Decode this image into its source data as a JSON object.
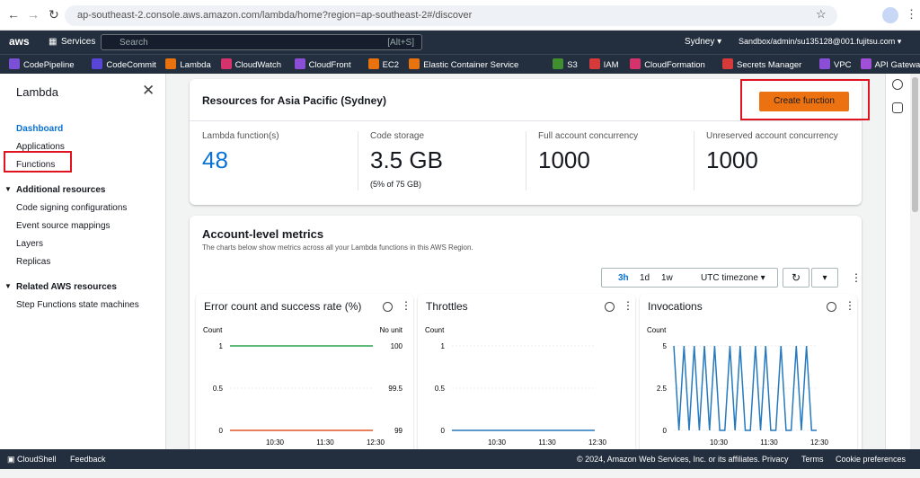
{
  "browser": {
    "url": "ap-southeast-2.console.aws.amazon.com/lambda/home?region=ap-southeast-2#/discover"
  },
  "aws_nav": {
    "services": "Services",
    "search": "Search",
    "shortcut": "[Alt+S]",
    "region": "Sydney",
    "account": "Sandbox/admin/su135128@001.fujitsu.com"
  },
  "favorites": [
    {
      "label": "CodePipeline",
      "color": "#7b4fd6"
    },
    {
      "label": "CodeCommit",
      "color": "#5a46d6"
    },
    {
      "label": "Lambda",
      "color": "#e8730e"
    },
    {
      "label": "CloudWatch",
      "color": "#d6336c"
    },
    {
      "label": "CloudFront",
      "color": "#8a4fd6"
    },
    {
      "label": "EC2",
      "color": "#e8730e"
    },
    {
      "label": "Elastic Container Service",
      "color": "#e8730e"
    },
    {
      "label": "S3",
      "color": "#3f8f2f"
    },
    {
      "label": "IAM",
      "color": "#d63a3a"
    },
    {
      "label": "CloudFormation",
      "color": "#d6336c"
    },
    {
      "label": "Secrets Manager",
      "color": "#d63a3a"
    },
    {
      "label": "VPC",
      "color": "#8a4fd6"
    },
    {
      "label": "API Gateway",
      "color": "#a04fd6"
    }
  ],
  "sidebar": {
    "title": "Lambda",
    "items": [
      "Dashboard",
      "Applications",
      "Functions"
    ],
    "sections": [
      {
        "title": "Additional resources",
        "items": [
          "Code signing configurations",
          "Event source mappings",
          "Layers",
          "Replicas"
        ]
      },
      {
        "title": "Related AWS resources",
        "items": [
          "Step Functions state machines"
        ]
      }
    ]
  },
  "resources": {
    "title": "Resources for Asia Pacific (Sydney)",
    "button": "Create function",
    "stats": [
      {
        "label": "Lambda function(s)",
        "value": "48"
      },
      {
        "label": "Code storage",
        "value": "3.5 GB",
        "note": "(5% of 75 GB)"
      },
      {
        "label": "Full account concurrency",
        "value": "1000"
      },
      {
        "label": "Unreserved account concurrency",
        "value": "1000"
      }
    ]
  },
  "metrics": {
    "title": "Account-level metrics",
    "description": "The charts below show metrics across all your Lambda functions in this AWS Region.",
    "ranges": [
      "3h",
      "1d",
      "1w"
    ],
    "timezone": "UTC timezone",
    "charts": [
      {
        "type": "line",
        "title": "Error count and success rate (%)",
        "ylabel": "Count",
        "y2label": "No unit",
        "ylim": [
          0,
          1
        ],
        "yticks": [
          1,
          0.5,
          0
        ],
        "y2lim": [
          99,
          100
        ],
        "y2ticks": [
          100,
          99.5,
          99
        ],
        "xticks": [
          "10:30",
          "11:30",
          "12:30"
        ],
        "series": [
          {
            "color": "#2ea44f",
            "axis": "y2",
            "values": [
              100,
              100
            ]
          },
          {
            "color": "#e0552a",
            "values": [
              0,
              0
            ]
          }
        ]
      },
      {
        "type": "line",
        "title": "Throttles",
        "ylabel": "Count",
        "ylim": [
          0,
          1
        ],
        "yticks": [
          1,
          0.5,
          0
        ],
        "xticks": [
          "10:30",
          "11:30",
          "12:30"
        ],
        "series": [
          {
            "color": "#2779bd",
            "values": [
              0,
              0
            ]
          }
        ]
      },
      {
        "type": "line",
        "title": "Invocations",
        "ylabel": "Count",
        "ylim": [
          0,
          5
        ],
        "yticks": [
          5,
          2.5,
          0
        ],
        "xticks": [
          "10:30",
          "11:30",
          "12:30"
        ],
        "series": [
          {
            "color": "#2779bd",
            "values": [
              5,
              0,
              5,
              0,
              5,
              0,
              5,
              0,
              5,
              0,
              0,
              5,
              0,
              5,
              0,
              0,
              5,
              0,
              5,
              0,
              0,
              5,
              0,
              0,
              5,
              0,
              5,
              0,
              0
            ]
          }
        ]
      }
    ]
  },
  "footer": {
    "cloudshell": "CloudShell",
    "feedback": "Feedback",
    "copyright": "© 2024, Amazon Web Services, Inc. or its affiliates.",
    "links": [
      "Privacy",
      "Terms",
      "Cookie preferences"
    ]
  }
}
